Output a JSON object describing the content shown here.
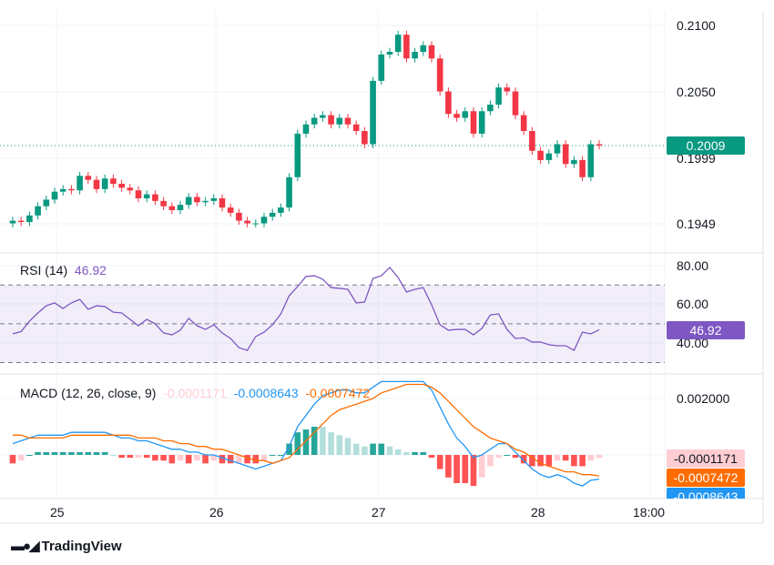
{
  "chart_data": [
    {
      "type": "candlestick",
      "title": "",
      "price_axis": {
        "ticks": [
          "0.2100",
          "0.2050",
          "0.1999",
          "0.1949"
        ],
        "range": [
          0.1935,
          0.2112
        ]
      },
      "x_ticks": [
        "25",
        "26",
        "27",
        "28",
        "18:00"
      ],
      "current_price": "0.2009",
      "up_color": "#089981",
      "down_color": "#f23645",
      "open_first": 0.195,
      "close": [
        0.1952,
        0.1951,
        0.1956,
        0.1963,
        0.1968,
        0.1974,
        0.1976,
        0.1975,
        0.1986,
        0.1983,
        0.1976,
        0.1984,
        0.198,
        0.1977,
        0.1975,
        0.1969,
        0.1972,
        0.1967,
        0.1963,
        0.196,
        0.1964,
        0.197,
        0.1966,
        0.1967,
        0.1969,
        0.1962,
        0.1958,
        0.1952,
        0.195,
        0.195,
        0.1955,
        0.1958,
        0.1962,
        0.1985,
        0.2018,
        0.2025,
        0.203,
        0.2032,
        0.2025,
        0.203,
        0.2025,
        0.202,
        0.201,
        0.2058,
        0.2078,
        0.208,
        0.2093,
        0.2075,
        0.208,
        0.2085,
        0.2075,
        0.205,
        0.2033,
        0.203,
        0.2035,
        0.2018,
        0.2035,
        0.204,
        0.2053,
        0.205,
        0.2032,
        0.202,
        0.2005,
        0.1998,
        0.2003,
        0.201,
        0.1995,
        0.1998,
        0.1985,
        0.201,
        0.2009
      ]
    },
    {
      "type": "line",
      "title": "RSI (14)",
      "value": "46.92",
      "color": "#7e57c2",
      "ticks": [
        "80.00",
        "60.00",
        "40.00"
      ],
      "bands": [
        70,
        50,
        30
      ],
      "range": [
        25,
        85
      ],
      "values": [
        44.8,
        46,
        51.4,
        55.6,
        59.3,
        60.8,
        57.9,
        60.8,
        62.6,
        57.5,
        59.3,
        58.9,
        56,
        55.6,
        52.3,
        49,
        52.3,
        50,
        45.3,
        44.3,
        46.7,
        52.8,
        49,
        47.1,
        49.5,
        45.3,
        42.4,
        37.7,
        36.3,
        43.4,
        45.7,
        49.5,
        55.1,
        64.5,
        69.2,
        74.4,
        74.8,
        73,
        68.7,
        68.3,
        67.8,
        60.8,
        61.2,
        73.4,
        74.8,
        79.1,
        73.9,
        66.4,
        67.8,
        68.7,
        59.8,
        49.5,
        46.7,
        47.1,
        47.1,
        44.3,
        47.6,
        54.6,
        55.1,
        47.1,
        42.4,
        42.8,
        40.6,
        40.6,
        39.2,
        38.7,
        38.7,
        36.3,
        45.7,
        44.8,
        46.92
      ]
    },
    {
      "type": "line",
      "title": "MACD (12, 26, close, 9)",
      "ticks": [
        "0.002000"
      ],
      "range": [
        -0.00135,
        0.0028
      ],
      "histogram_value": "-0.0001171",
      "macd_value": "-0.0008643",
      "signal_value": "-0.0007472",
      "colors": {
        "macd": "#2196f3",
        "signal": "#ff6d00",
        "hist_up_strong": "#26a69a",
        "hist_up_weak": "#b2dfdb",
        "hist_down_strong": "#ff5252",
        "hist_down_weak": "#ffcdd2"
      },
      "macd": [
        0.0004,
        0.0005,
        0.0006,
        0.0007,
        0.0007,
        0.0007,
        0.0007,
        0.0008,
        0.0008,
        0.0008,
        0.0008,
        0.0008,
        0.0007,
        0.0006,
        0.0006,
        0.0005,
        0.0005,
        0.0004,
        0.0003,
        0.0002,
        0.0002,
        0.0001,
        0.0001,
        0,
        0,
        -0.0001,
        -0.0002,
        -0.0003,
        -0.0004,
        -0.0005,
        -0.0004,
        -0.0003,
        -0.0002,
        0.0003,
        0.001,
        0.0014,
        0.0018,
        0.0021,
        0.0022,
        0.0023,
        0.0023,
        0.0022,
        0.0022,
        0.0024,
        0.0026,
        0.0026,
        0.0026,
        0.0026,
        0.0026,
        0.0026,
        0.0023,
        0.0017,
        0.0011,
        0.0006,
        0.0003,
        -0.0001,
        0,
        0.0002,
        0.0004,
        0.0004,
        0.0001,
        -0.0002,
        -0.0005,
        -0.0007,
        -0.0008,
        -0.0007,
        -0.0008,
        -0.001,
        -0.0011,
        -0.0009,
        -0.00086
      ],
      "signal": [
        0.0007,
        0.0007,
        0.0006,
        0.0006,
        0.0006,
        0.0006,
        0.0006,
        0.0007,
        0.0007,
        0.0007,
        0.0007,
        0.0007,
        0.0007,
        0.0007,
        0.0007,
        0.0006,
        0.0006,
        0.0006,
        0.0005,
        0.0005,
        0.0004,
        0.0004,
        0.0003,
        0.0003,
        0.0002,
        0.0002,
        0.0001,
        0,
        -0.0001,
        -0.0002,
        -0.0002,
        -0.0003,
        -0.0002,
        -0.0001,
        0.0002,
        0.0005,
        0.0008,
        0.0011,
        0.0014,
        0.0016,
        0.0017,
        0.0018,
        0.0019,
        0.002,
        0.0022,
        0.0023,
        0.0024,
        0.0025,
        0.0025,
        0.0025,
        0.0024,
        0.0022,
        0.0019,
        0.0016,
        0.0013,
        0.001,
        0.0008,
        0.0006,
        0.0005,
        0.0004,
        0.0002,
        0.0001,
        -0.0001,
        -0.0003,
        -0.0004,
        -0.0005,
        -0.0006,
        -0.0006,
        -0.0007,
        -0.0007,
        -0.00075
      ]
    }
  ],
  "brand": "TradingView"
}
